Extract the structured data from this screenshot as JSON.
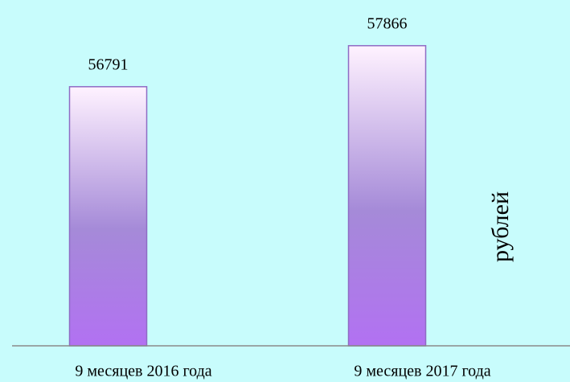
{
  "chart_data": {
    "type": "bar",
    "categories": [
      "9 месяцев 2016 года",
      "9 месяцев 2017 года"
    ],
    "values": [
      56791,
      57866
    ],
    "color": "#a58ad8",
    "ylim": [
      50000,
      59000
    ],
    "y_label": "рублей",
    "data_labels": true
  }
}
